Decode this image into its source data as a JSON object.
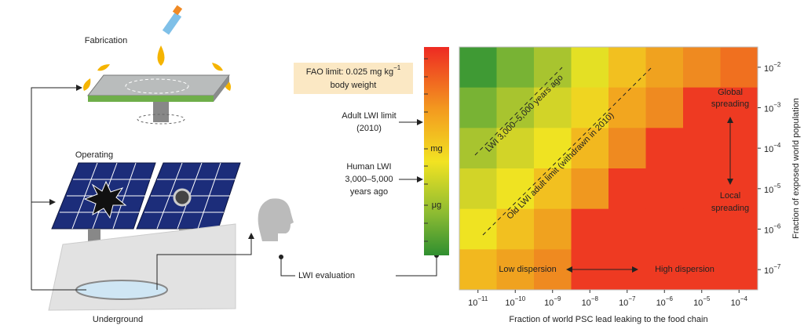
{
  "illustration": {
    "fabrication": "Fabrication",
    "operating": "Operating",
    "underground": "Underground"
  },
  "colorbar": {
    "fao": {
      "text": "FAO limit: 0.025 mg kg",
      "sup": "−1",
      "line2": "body weight"
    },
    "adult_lwi": [
      "Adult LWI limit",
      "(2010)"
    ],
    "human_lwi": [
      "Human LWI",
      "3,000–5,000",
      "years ago"
    ],
    "lwi_evaluation": "LWI evaluation",
    "units": [
      "mg",
      "μg"
    ]
  },
  "heatmap": {
    "x_label": "Fraction of world PSC lead leaking to the food chain",
    "y_label": "Fraction of exposed world population",
    "x_ticks": [
      {
        "base": "10",
        "exp": "−11"
      },
      {
        "base": "10",
        "exp": "−10"
      },
      {
        "base": "10",
        "exp": "−9"
      },
      {
        "base": "10",
        "exp": "−8"
      },
      {
        "base": "10",
        "exp": "−7"
      },
      {
        "base": "10",
        "exp": "−6"
      },
      {
        "base": "10",
        "exp": "−5"
      },
      {
        "base": "10",
        "exp": "−4"
      }
    ],
    "y_ticks": [
      {
        "base": "10",
        "exp": "−2"
      },
      {
        "base": "10",
        "exp": "−3"
      },
      {
        "base": "10",
        "exp": "−4"
      },
      {
        "base": "10",
        "exp": "−5"
      },
      {
        "base": "10",
        "exp": "−6"
      },
      {
        "base": "10",
        "exp": "−7"
      }
    ],
    "cell_colors": [
      [
        "#3f9a34",
        "#78b334",
        "#a8c42f",
        "#e4e024",
        "#f2c020",
        "#f0a21f",
        "#ef8a20",
        "#f0701f"
      ],
      [
        "#78b334",
        "#a8c42f",
        "#d2d428",
        "#efd521",
        "#f2a61f",
        "#ef8a20",
        "#ee3a22",
        "#ee3a22"
      ],
      [
        "#a8c42f",
        "#d2d428",
        "#efe322",
        "#f2b81f",
        "#ef8a20",
        "#ee3a22",
        "#ee3a22",
        "#ee3a22"
      ],
      [
        "#d2d428",
        "#efe322",
        "#f2c020",
        "#f0981f",
        "#ee3a22",
        "#ee3a22",
        "#ee3a22",
        "#ee3a22"
      ],
      [
        "#efe322",
        "#f2c020",
        "#f0a21f",
        "#ee3a22",
        "#ee3a22",
        "#ee3a22",
        "#ee3a22",
        "#ee3a22"
      ],
      [
        "#f2b81f",
        "#f0a21f",
        "#ef8a20",
        "#ee3a22",
        "#ee3a22",
        "#ee3a22",
        "#ee3a22",
        "#ee3a22"
      ]
    ],
    "annotations": {
      "lwi_ancient": "LWI 3,000–5,000 years ago",
      "old_limit": "Old LWI adult limit (withdrawn in 2010)",
      "global": [
        "Global",
        "spreading"
      ],
      "local": [
        "Local",
        "spreading"
      ],
      "low": "Low dispersion",
      "high": "High dispersion"
    }
  }
}
